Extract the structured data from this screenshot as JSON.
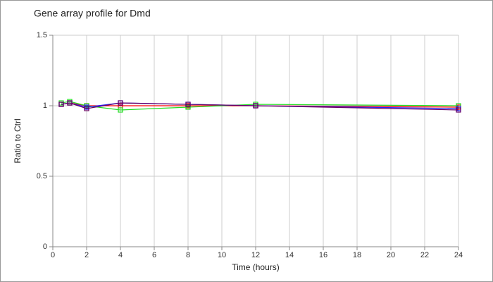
{
  "chart_data": {
    "type": "line",
    "title": "Gene array profile for Dmd",
    "x_label": "Time (hours)",
    "y_label": "Ratio to Ctrl",
    "x": [
      0.5,
      1,
      2,
      4,
      8,
      12,
      24
    ],
    "series": [
      {
        "color": "#ff0000",
        "values": [
          1.01,
          1.02,
          1.0,
          1.0,
          1.0,
          1.0,
          0.99
        ]
      },
      {
        "color": "#22dd22",
        "values": [
          1.02,
          1.03,
          1.0,
          0.97,
          0.99,
          1.01,
          1.0
        ]
      },
      {
        "color": "#2222ff",
        "values": [
          1.01,
          1.02,
          0.99,
          1.02,
          1.01,
          1.0,
          0.98
        ]
      },
      {
        "color": "#660066",
        "values": [
          1.01,
          1.02,
          0.98,
          1.02,
          1.01,
          1.0,
          0.97
        ]
      }
    ],
    "xlim": [
      0,
      24
    ],
    "xticks": [
      0,
      2,
      4,
      6,
      8,
      10,
      12,
      14,
      16,
      18,
      20,
      22,
      24
    ],
    "ylim": [
      0,
      1.5
    ],
    "yticks": [
      0,
      0.5,
      1,
      1.5
    ],
    "grid": true
  }
}
